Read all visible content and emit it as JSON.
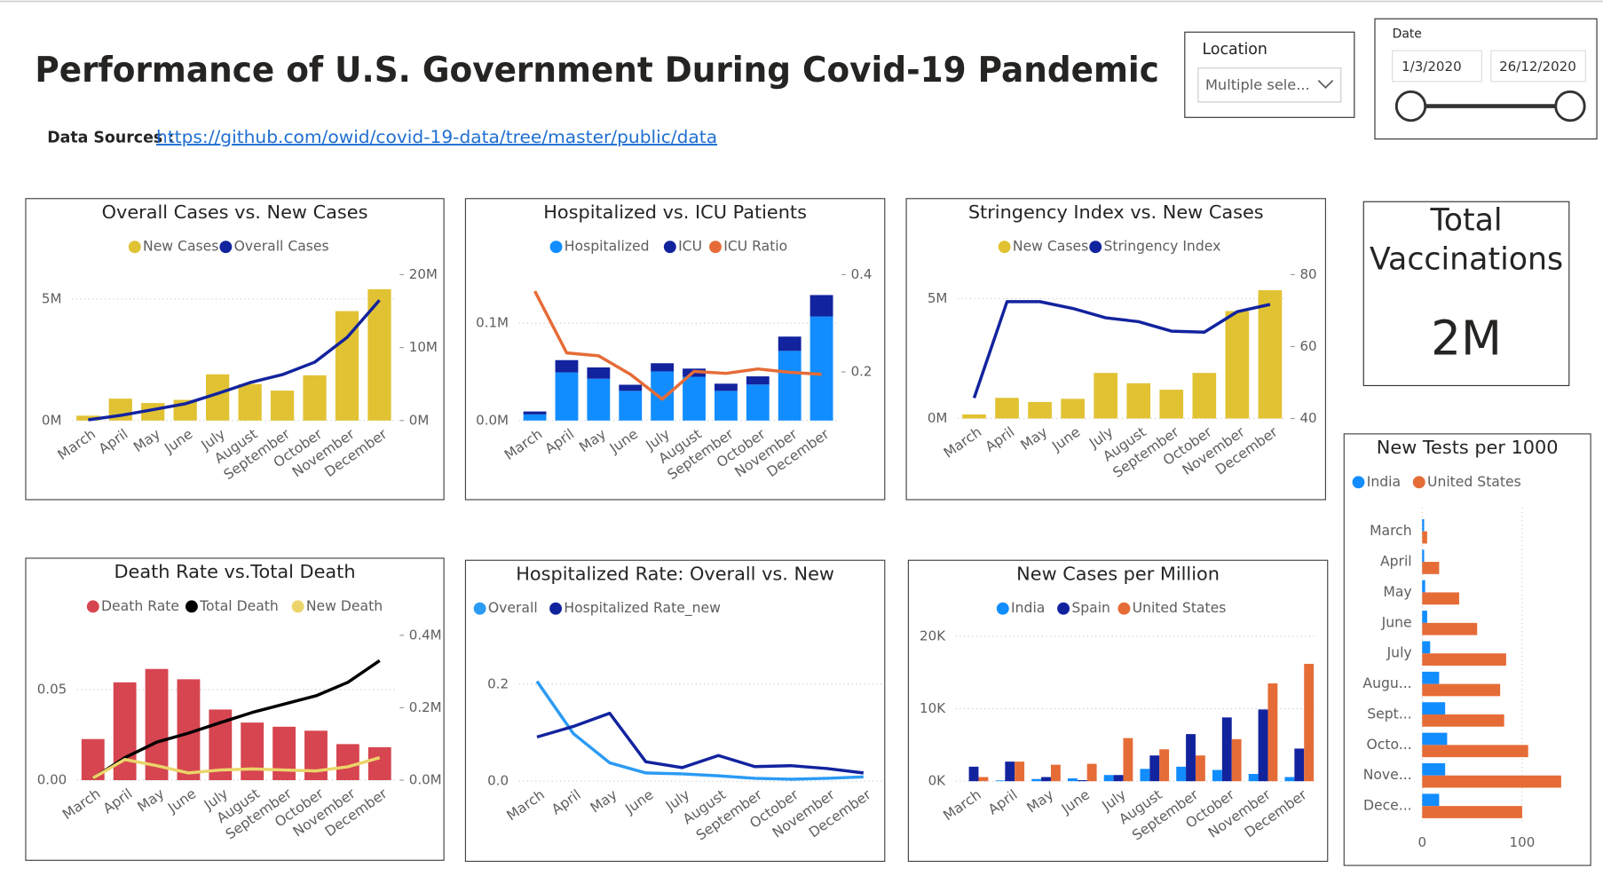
{
  "header": {
    "title": "Performance of U.S. Government During Covid-19 Pandemic",
    "sources_label": "Data Sources :",
    "sources_link": "https://github.com/owid/covid-19-data/tree/master/public/data"
  },
  "location_slicer": {
    "label": "Location",
    "selection": "Multiple sele..."
  },
  "date_slicer": {
    "label": "Date",
    "start": "1/3/2020",
    "end": "26/12/2020"
  },
  "card": {
    "label": "Total Vaccinations",
    "value": "2M"
  },
  "chart_data": [
    {
      "type": "combo",
      "title": "Overall Cases vs. New Cases",
      "categories": [
        "March",
        "April",
        "May",
        "June",
        "July",
        "August",
        "September",
        "October",
        "November",
        "December"
      ],
      "series": [
        {
          "name": "New Cases",
          "color": "#E1C233",
          "mark": "bar",
          "values": [
            200000,
            900000,
            720000,
            850000,
            1900000,
            1500000,
            1230000,
            1860000,
            4500000,
            5400000
          ]
        },
        {
          "name": "Overall Cases",
          "color": "#12239E",
          "mark": "line",
          "axis": "y2",
          "values": [
            100000,
            700000,
            1500000,
            2300000,
            3700000,
            5200000,
            6300000,
            8000000,
            11400000,
            16500000
          ]
        }
      ],
      "ylim": [
        0,
        6000000
      ],
      "yticks": [
        {
          "value": 0,
          "label": "0M"
        },
        {
          "value": 5000000,
          "label": "5M"
        }
      ],
      "y2lim": [
        0,
        20000000
      ],
      "y2ticks": [
        {
          "value": 0,
          "label": "0M"
        },
        {
          "value": 10000000,
          "label": "10M"
        },
        {
          "value": 20000000,
          "label": "20M"
        }
      ],
      "grid": true
    },
    {
      "type": "combo",
      "title": "Hospitalized vs. ICU Patients",
      "categories": [
        "March",
        "April",
        "May",
        "June",
        "July",
        "August",
        "September",
        "October",
        "November",
        "December"
      ],
      "stacked": true,
      "series": [
        {
          "name": "Hospitalized",
          "color": "#118DFF",
          "mark": "bar",
          "values": [
            6300,
            49500,
            43000,
            30500,
            50500,
            45000,
            30500,
            37000,
            71600,
            107000
          ]
        },
        {
          "name": "ICU",
          "color": "#12239E",
          "mark": "bar",
          "values": [
            3000,
            12600,
            11600,
            6300,
            8400,
            8400,
            7400,
            8400,
            14700,
            22000
          ]
        },
        {
          "name": "ICU Ratio",
          "color": "#E66C37",
          "mark": "line",
          "axis": "y2",
          "values": [
            0.366,
            0.239,
            0.233,
            0.195,
            0.144,
            0.201,
            0.197,
            0.206,
            0.199,
            0.195
          ]
        }
      ],
      "ylim": [
        0,
        150000
      ],
      "yticks": [
        {
          "value": 0,
          "label": "0.0M"
        },
        {
          "value": 100000,
          "label": "0.1M"
        }
      ],
      "y2lim": [
        0.1,
        0.4
      ],
      "y2ticks": [
        0.2,
        0.4
      ],
      "grid": true
    },
    {
      "type": "combo",
      "title": "Stringency Index vs. New Cases",
      "categories": [
        "March",
        "April",
        "May",
        "June",
        "July",
        "August",
        "September",
        "October",
        "November",
        "December"
      ],
      "series": [
        {
          "name": "New Cases",
          "color": "#E1C233",
          "mark": "bar",
          "values": [
            170000,
            860000,
            690000,
            820000,
            1900000,
            1470000,
            1200000,
            1900000,
            4480000,
            5350000
          ]
        },
        {
          "name": "Stringency Index",
          "color": "#12239E",
          "mark": "line",
          "axis": "y2",
          "values": [
            45.7,
            72.5,
            72.5,
            70.6,
            68,
            66.9,
            64.3,
            64,
            69.7,
            71.7
          ]
        }
      ],
      "ylim": [
        0,
        6000000
      ],
      "yticks": [
        {
          "value": 0,
          "label": "0M"
        },
        {
          "value": 5000000,
          "label": "5M"
        }
      ],
      "y2lim": [
        40,
        80
      ],
      "y2ticks": [
        40,
        60,
        80
      ],
      "grid": true
    },
    {
      "type": "barh",
      "title": "New Tests per 1000",
      "categories": [
        "March",
        "April",
        "May",
        "June",
        "July",
        "Augu...",
        "Sept...",
        "Octo...",
        "Nove...",
        "Dece..."
      ],
      "series": [
        {
          "name": "India",
          "color": "#118DFF",
          "values": [
            2,
            2,
            3,
            5,
            8,
            17,
            23,
            25,
            23,
            17
          ]
        },
        {
          "name": "United States",
          "color": "#E66C37",
          "values": [
            5,
            17,
            37,
            55,
            84,
            78,
            82,
            106,
            139,
            100
          ]
        }
      ],
      "xlim": [
        0,
        150
      ],
      "xticks": [
        0,
        100
      ],
      "grid": true
    },
    {
      "type": "combo",
      "title": "Death Rate vs.Total Death",
      "categories": [
        "March",
        "April",
        "May",
        "June",
        "July",
        "August",
        "September",
        "October",
        "November",
        "December"
      ],
      "series": [
        {
          "name": "Death Rate",
          "color": "#D64550",
          "mark": "bar",
          "values": [
            0.0227,
            0.054,
            0.0614,
            0.0557,
            0.039,
            0.0318,
            0.0295,
            0.0273,
            0.0199,
            0.0182
          ]
        },
        {
          "name": "Total Death",
          "color": "#000000",
          "mark": "line",
          "axis": "y2",
          "values": [
            5000,
            62000,
            105000,
            130000,
            159000,
            187000,
            210000,
            233000,
            270000,
            330000
          ]
        },
        {
          "name": "New Death",
          "color": "#EBD56A",
          "mark": "line",
          "axis": "y2",
          "values": [
            6000,
            57000,
            40000,
            20000,
            28000,
            31000,
            28000,
            25500,
            37000,
            62000
          ]
        }
      ],
      "ylim": [
        0,
        0.08
      ],
      "yticks": [
        {
          "value": 0,
          "label": "0.00"
        },
        0.05
      ],
      "y2lim": [
        0,
        400000
      ],
      "y2ticks": [
        {
          "value": 0,
          "label": "0.0M"
        },
        {
          "value": 200000,
          "label": "0.2M"
        },
        {
          "value": 400000,
          "label": "0.4M"
        }
      ],
      "grid": true
    },
    {
      "type": "line",
      "title": "Hospitalized Rate: Overall vs. New",
      "categories": [
        "March",
        "April",
        "May",
        "June",
        "July",
        "August",
        "September",
        "October",
        "November",
        "December"
      ],
      "series": [
        {
          "name": "Overall",
          "color": "#2B9BF4",
          "values": [
            0.206,
            0.098,
            0.038,
            0.017,
            0.015,
            0.011,
            0.006,
            0.004,
            0.006,
            0.009
          ]
        },
        {
          "name": "Hospitalized Rate_new",
          "color": "#12239E",
          "values": [
            0.091,
            0.113,
            0.14,
            0.04,
            0.028,
            0.053,
            0.03,
            0.032,
            0.026,
            0.017
          ]
        }
      ],
      "ylim": [
        0,
        0.25
      ],
      "yticks": [
        {
          "value": 0,
          "label": "0.0"
        },
        0.2
      ],
      "grid": true
    },
    {
      "type": "bar",
      "title": "New Cases per Million",
      "categories": [
        "March",
        "April",
        "May",
        "June",
        "July",
        "August",
        "September",
        "October",
        "November",
        "December"
      ],
      "series": [
        {
          "name": "India",
          "color": "#118DFF",
          "values": [
            0,
            100,
            300,
            400,
            850,
            1700,
            2000,
            1550,
            1000,
            570
          ]
        },
        {
          "name": "Spain",
          "color": "#12239E",
          "values": [
            2000,
            2700,
            570,
            140,
            850,
            3550,
            6500,
            8800,
            9900,
            4500
          ]
        },
        {
          "name": "United States",
          "color": "#E66C37",
          "values": [
            570,
            2700,
            2270,
            2400,
            5950,
            4400,
            3550,
            5800,
            13500,
            16200
          ]
        }
      ],
      "ylim": [
        0,
        20000
      ],
      "yticks": [
        {
          "value": 0,
          "label": "0K"
        },
        {
          "value": 10000,
          "label": "10K"
        },
        {
          "value": 20000,
          "label": "20K"
        }
      ],
      "grid": true
    }
  ]
}
